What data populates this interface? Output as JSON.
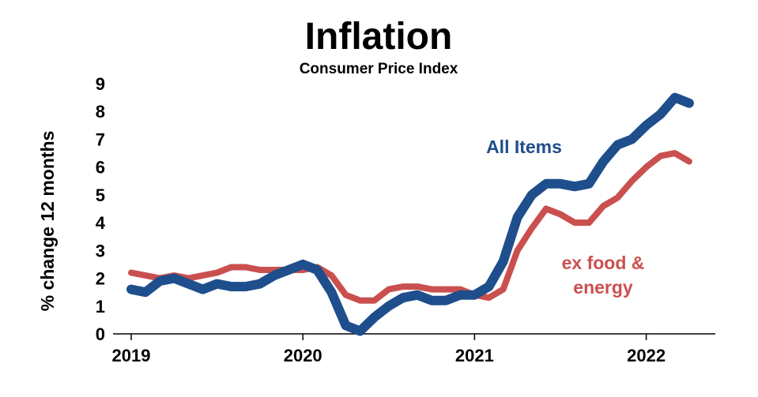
{
  "chart_data": {
    "type": "line",
    "title": "Inflation",
    "subtitle": "Consumer Price Index",
    "ylabel": "% change 12 months",
    "xlabel": "",
    "ylim": [
      0,
      9
    ],
    "yticks": [
      "0",
      "1",
      "2",
      "3",
      "4",
      "5",
      "6",
      "7",
      "8",
      "9"
    ],
    "xticks": [
      "2019",
      "2020",
      "2021",
      "2022"
    ],
    "x_start": "2019-01",
    "x_frequency": "monthly",
    "grid": false,
    "series": [
      {
        "name": "All Items",
        "color": "#1f4e8c",
        "values": [
          1.6,
          1.5,
          1.9,
          2.0,
          1.8,
          1.6,
          1.8,
          1.7,
          1.7,
          1.8,
          2.1,
          2.3,
          2.5,
          2.3,
          1.5,
          0.3,
          0.1,
          0.6,
          1.0,
          1.3,
          1.4,
          1.2,
          1.2,
          1.4,
          1.4,
          1.7,
          2.6,
          4.2,
          5.0,
          5.4,
          5.4,
          5.3,
          5.4,
          6.2,
          6.8,
          7.0,
          7.5,
          7.9,
          8.5,
          8.3
        ]
      },
      {
        "name": "ex food & energy",
        "label_lines": [
          "ex food &",
          "energy"
        ],
        "color": "#c9504f",
        "values": [
          2.2,
          2.1,
          2.0,
          2.1,
          2.0,
          2.1,
          2.2,
          2.4,
          2.4,
          2.3,
          2.3,
          2.3,
          2.3,
          2.4,
          2.1,
          1.4,
          1.2,
          1.2,
          1.6,
          1.7,
          1.7,
          1.6,
          1.6,
          1.6,
          1.4,
          1.3,
          1.6,
          3.0,
          3.8,
          4.5,
          4.3,
          4.0,
          4.0,
          4.6,
          4.9,
          5.5,
          6.0,
          6.4,
          6.5,
          6.2
        ]
      }
    ]
  }
}
